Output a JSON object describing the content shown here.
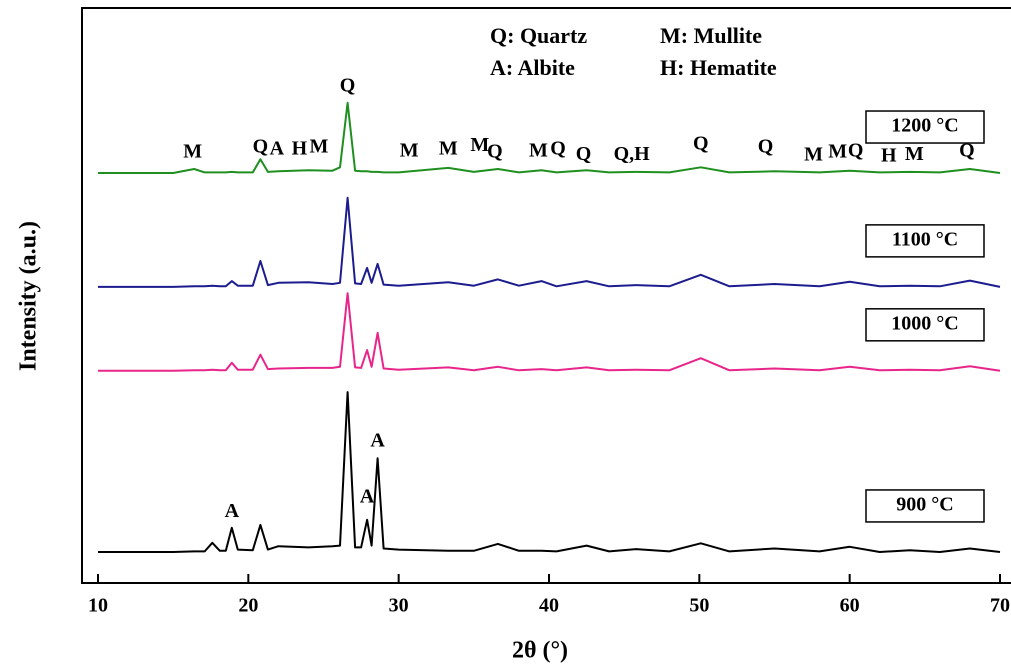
{
  "chart_data": {
    "type": "line",
    "xlabel": "2θ (°)",
    "ylabel": "Intensity (a.u.)",
    "legend_text": [
      "Q: Quartz",
      "M: Mullite",
      "A: Albite",
      "H: Hematite"
    ],
    "xlim": [
      10,
      70
    ],
    "xticks": [
      10,
      20,
      30,
      40,
      50,
      60,
      70
    ],
    "ylim": [
      0,
      100
    ],
    "x": [
      10,
      15,
      16.4,
      17.1,
      17.6,
      18.1,
      18.5,
      18.9,
      19.3,
      20.3,
      20.8,
      21.3,
      22,
      24,
      25.6,
      26.1,
      26.6,
      27.1,
      27.5,
      27.9,
      28.2,
      28.6,
      29.0,
      30,
      33.3,
      35,
      36.6,
      38,
      39.5,
      40.5,
      42.5,
      44,
      45.8,
      48,
      50.1,
      52,
      55,
      58,
      60,
      62,
      64,
      66,
      68,
      70
    ],
    "series": [
      {
        "name": "900 °C",
        "color": "#000000",
        "values": [
          5.4,
          5.4,
          5.5,
          5.5,
          7,
          5.6,
          5.6,
          9.6,
          5.8,
          5.7,
          10.1,
          5.8,
          6.4,
          6.2,
          6.4,
          6.5,
          33.2,
          6.2,
          6.2,
          11,
          6.5,
          21.7,
          6,
          5.8,
          5.6,
          5.6,
          6.8,
          5.6,
          5.6,
          5.5,
          6.5,
          5.5,
          5.9,
          5.5,
          6.9,
          5.5,
          6,
          5.5,
          6.3,
          5.4,
          5.7,
          5.4,
          6,
          5.4
        ]
      },
      {
        "name": "1000 °C",
        "color": "#e8258a",
        "values": [
          36.9,
          36.9,
          37,
          37,
          37.1,
          37,
          37,
          38.3,
          37.1,
          37.1,
          39.7,
          37.2,
          37.3,
          37.4,
          37.4,
          37.6,
          50.4,
          37.5,
          37.4,
          40.5,
          37.6,
          43.5,
          37.3,
          37.1,
          37.5,
          37,
          37.6,
          37,
          37.2,
          37,
          37.5,
          37,
          37.1,
          37,
          39.1,
          37,
          37.3,
          37,
          37.6,
          37,
          37.1,
          37,
          37.7,
          36.9
        ]
      },
      {
        "name": "1100 °C",
        "color": "#1c1c8e",
        "values": [
          51.5,
          51.5,
          51.6,
          51.6,
          51.7,
          51.6,
          51.6,
          52.5,
          51.7,
          51.7,
          56,
          51.8,
          52.2,
          52.3,
          52,
          52.2,
          67,
          52.1,
          52,
          54.8,
          52.2,
          55.5,
          51.9,
          51.7,
          52.3,
          51.7,
          52.8,
          51.7,
          52.5,
          51.6,
          52.5,
          51.6,
          51.8,
          51.6,
          53.6,
          51.6,
          52,
          51.6,
          52.4,
          51.6,
          51.7,
          51.6,
          52.6,
          51.5
        ]
      },
      {
        "name": "1200 °C",
        "color": "#1f8f1f",
        "values": [
          71.3,
          71.3,
          72,
          71.4,
          71.4,
          71.4,
          71.4,
          71.5,
          71.4,
          71.4,
          73.7,
          71.5,
          71.6,
          71.8,
          71.7,
          72.3,
          83.5,
          71.7,
          71.6,
          71.6,
          71.5,
          71.5,
          71.4,
          71.4,
          72.2,
          71.5,
          72,
          71.4,
          71.8,
          71.4,
          71.8,
          71.4,
          71.5,
          71.4,
          72.3,
          71.4,
          71.6,
          71.4,
          71.7,
          71.4,
          71.5,
          71.4,
          72,
          71.3
        ]
      }
    ],
    "annotations": [
      {
        "text": "A",
        "x": 18.9,
        "y": 12.3
      },
      {
        "text": "A",
        "x": 27.9,
        "y": 14.8
      },
      {
        "text": "A",
        "x": 28.6,
        "y": 24.5
      },
      {
        "text": "M",
        "x": 16.3,
        "y": 74.8
      },
      {
        "text": "Q",
        "x": 20.8,
        "y": 75.7
      },
      {
        "text": "A",
        "x": 21.9,
        "y": 75.3
      },
      {
        "text": "H",
        "x": 23.4,
        "y": 75.3
      },
      {
        "text": "M",
        "x": 24.7,
        "y": 75.7
      },
      {
        "text": "Q",
        "x": 26.6,
        "y": 86.3
      },
      {
        "text": "M",
        "x": 30.7,
        "y": 75
      },
      {
        "text": "M",
        "x": 33.3,
        "y": 75.3
      },
      {
        "text": "M",
        "x": 35.4,
        "y": 75.9
      },
      {
        "text": "Q",
        "x": 36.4,
        "y": 74.8
      },
      {
        "text": "M",
        "x": 39.3,
        "y": 75
      },
      {
        "text": "Q",
        "x": 40.6,
        "y": 75.3
      },
      {
        "text": "Q",
        "x": 42.3,
        "y": 74.4
      },
      {
        "text": "Q,H",
        "x": 45.5,
        "y": 74.4
      },
      {
        "text": "Q",
        "x": 50.1,
        "y": 76.2
      },
      {
        "text": "Q",
        "x": 54.4,
        "y": 75.7
      },
      {
        "text": "M",
        "x": 57.6,
        "y": 74.3
      },
      {
        "text": "M",
        "x": 59.2,
        "y": 74.8
      },
      {
        "text": "Q",
        "x": 60.4,
        "y": 75
      },
      {
        "text": "H",
        "x": 62.6,
        "y": 74.1
      },
      {
        "text": "M",
        "x": 64.3,
        "y": 74.4
      },
      {
        "text": "Q",
        "x": 67.8,
        "y": 75
      }
    ]
  }
}
